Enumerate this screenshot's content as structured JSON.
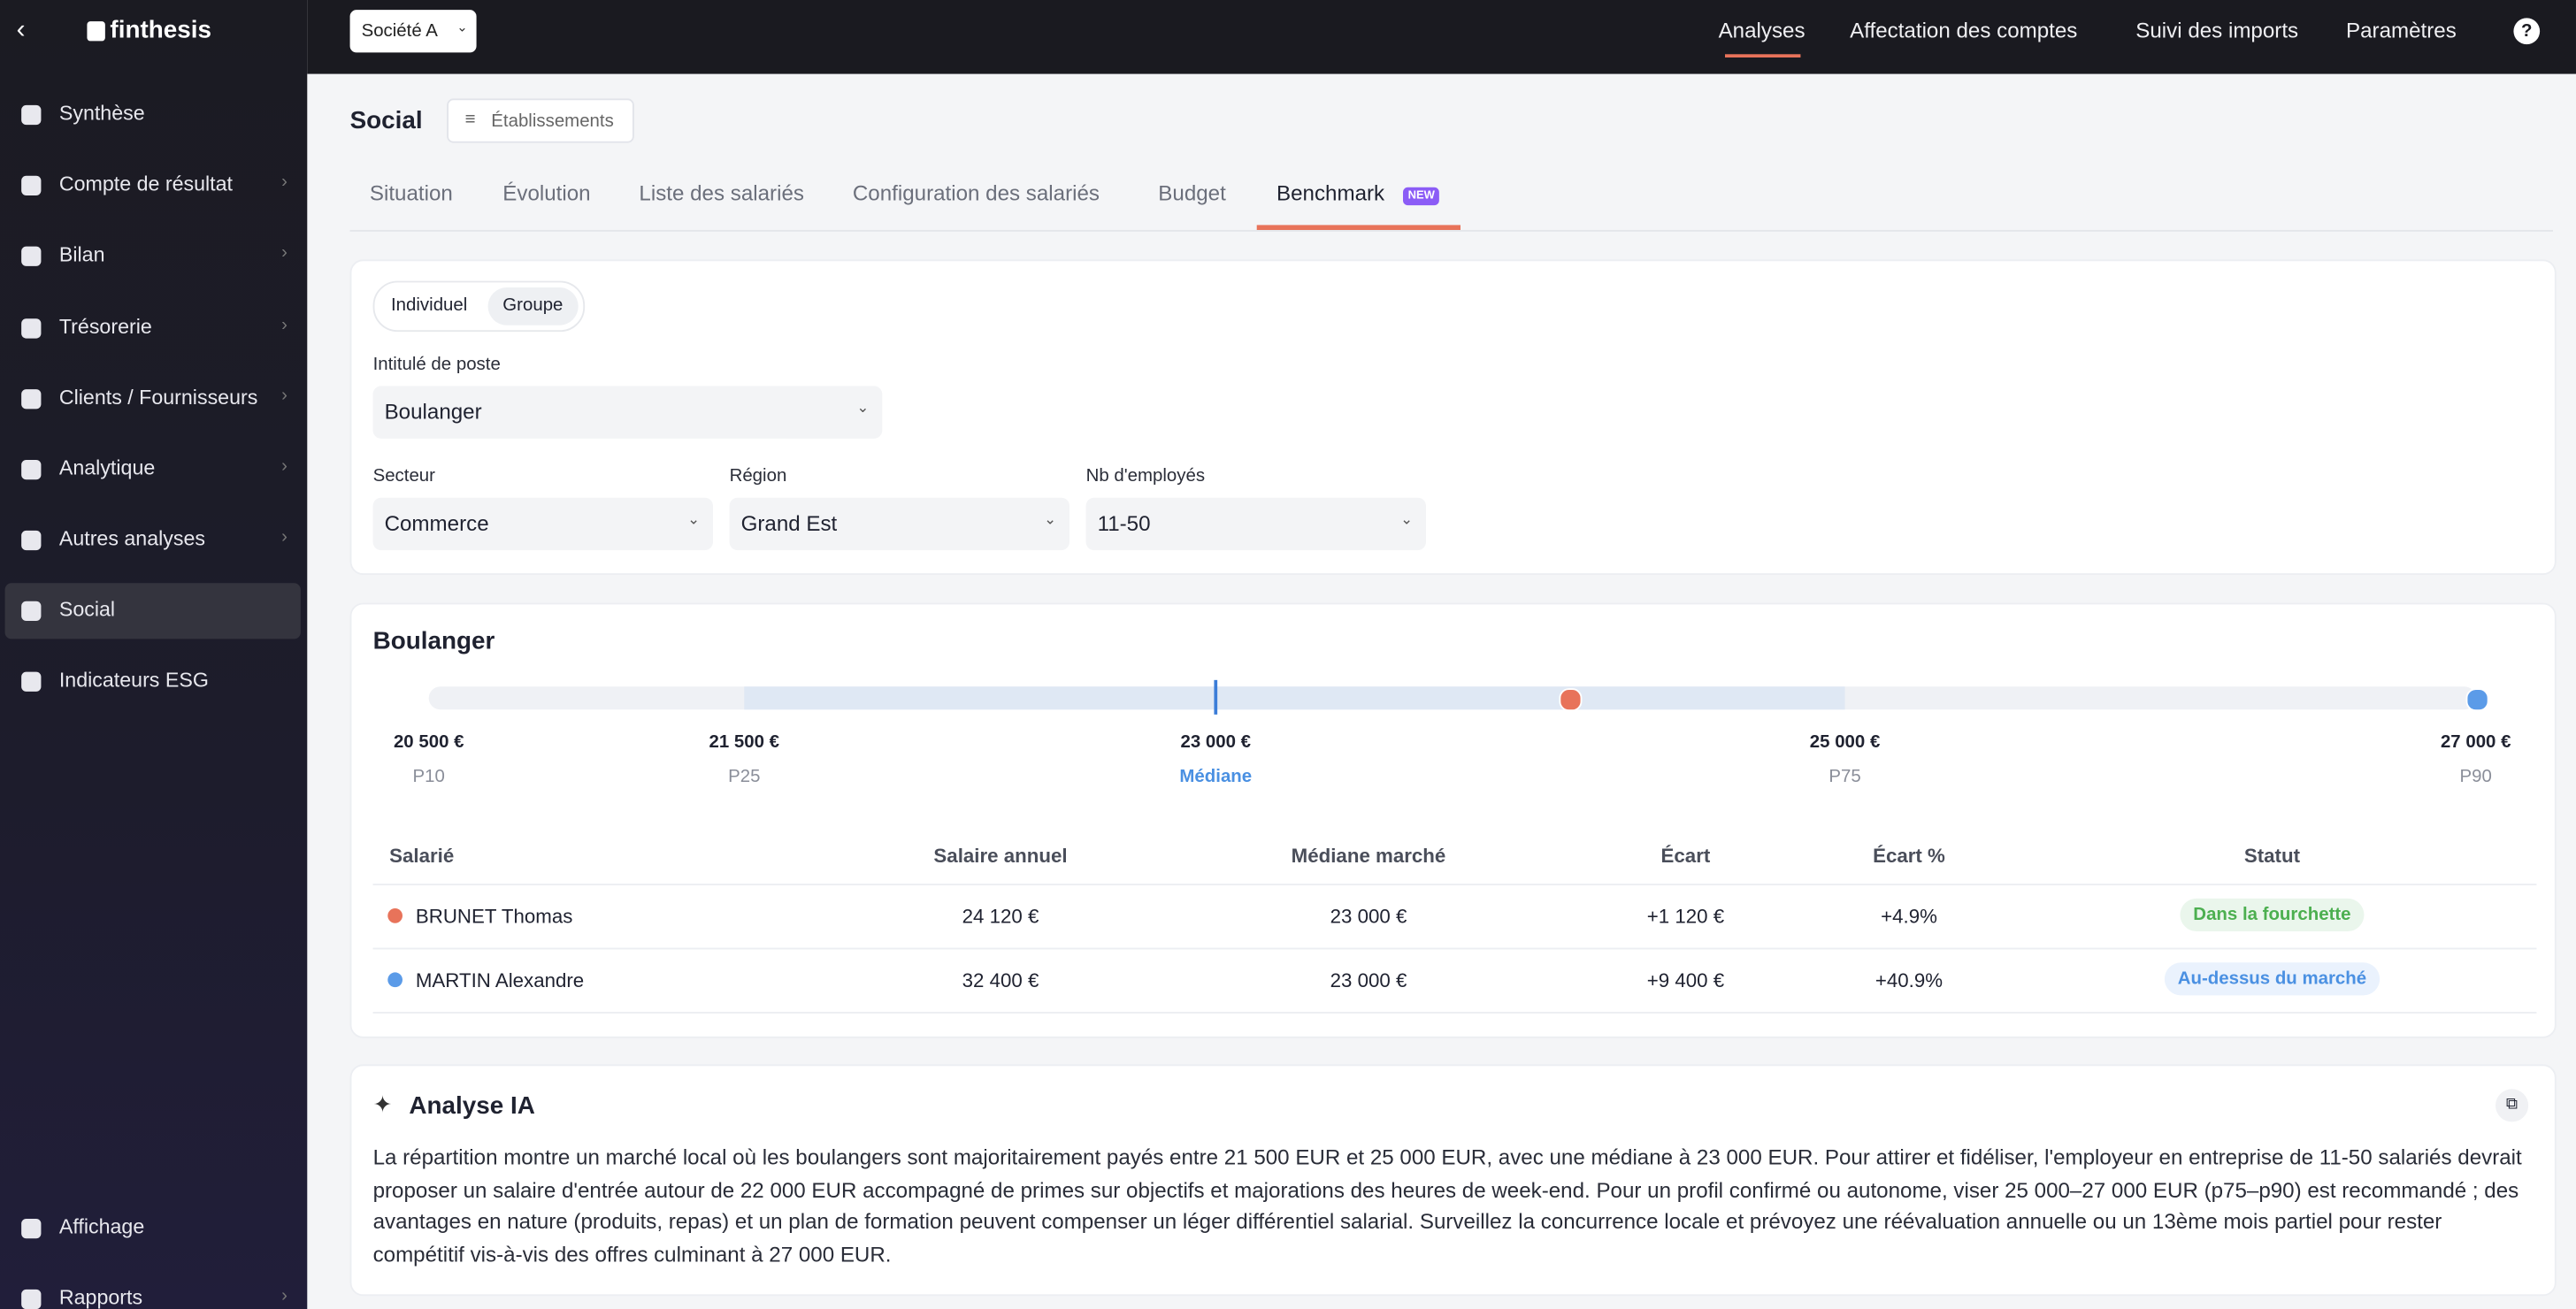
{
  "sidebar": {
    "brand": "finthesis",
    "items": [
      "Synthèse",
      "Compte de résultat",
      "Bilan",
      "Trésorerie",
      "Clients / Fournisseurs",
      "Analytique",
      "Autres analyses",
      "Social",
      "Indicateurs ESG"
    ],
    "bottom_items": [
      "Affichage",
      "Rapports"
    ]
  },
  "topbar": {
    "company": "Société A",
    "nav": [
      "Analyses",
      "Affectation des comptes",
      "Suivi des imports",
      "Paramètres"
    ],
    "help": "?"
  },
  "page": {
    "title": "Social",
    "button": "Établissements",
    "tabs": [
      "Situation",
      "Évolution",
      "Liste des salariés",
      "Configuration des salariés",
      "Budget",
      "Benchmark"
    ],
    "badge": "NEW"
  },
  "filters": {
    "toggle": [
      "Individuel",
      "Groupe"
    ],
    "fields": [
      {
        "label": "Intitulé de poste",
        "value": "Boulanger"
      },
      {
        "label": "Secteur",
        "value": "Commerce"
      },
      {
        "label": "Région",
        "value": "Grand Est"
      },
      {
        "label": "Nb d'employés",
        "value": "11-50"
      }
    ]
  },
  "benchmark": {
    "title": "Boulanger",
    "percentiles": [
      {
        "value": "20 500 €",
        "label": "P10"
      },
      {
        "value": "21 500 €",
        "label": "P25"
      },
      {
        "value": "23 000 €",
        "label": "Médiane"
      },
      {
        "value": "25 000 €",
        "label": "P75"
      },
      {
        "value": "27 000 €",
        "label": "P90"
      }
    ],
    "table": {
      "columns": [
        "Salarié",
        "Salaire annuel",
        "Médiane marché",
        "Écart",
        "Écart %",
        "Statut"
      ],
      "rows": [
        [
          "BRUNET Thomas",
          "24 120 €",
          "23 000 €",
          "+1 120 €",
          "+4.9%",
          "Dans la fourchette"
        ],
        [
          "MARTIN Alexandre",
          "32 400 €",
          "23 000 €",
          "+9 400 €",
          "+40.9%",
          "Au-dessus du marché"
        ]
      ]
    }
  },
  "analysis": {
    "title": "Analyse IA",
    "text": "La répartition montre un marché local où les boulangers sont majoritairement payés entre 21 500 EUR et 25 000 EUR, avec une médiane à 23 000 EUR. Pour attirer et fidéliser, l'employeur en entreprise de 11-50 salariés devrait proposer un salaire d'entrée autour de 22 000 EUR accompagné de primes sur objectifs et majorations des heures de week-end. Pour un profil confirmé ou autonome, viser 25 000–27 000 EUR (p75–p90) est recommandé ; des avantages en nature (produits, repas) et un plan de formation peuvent compenser un léger différentiel salarial. Surveillez la concurrence locale et prévoyez une réévaluation annuelle ou un 13ème mois partiel pour rester compétitif vis-à-vis des offres culminant à 27 000 EUR."
  }
}
